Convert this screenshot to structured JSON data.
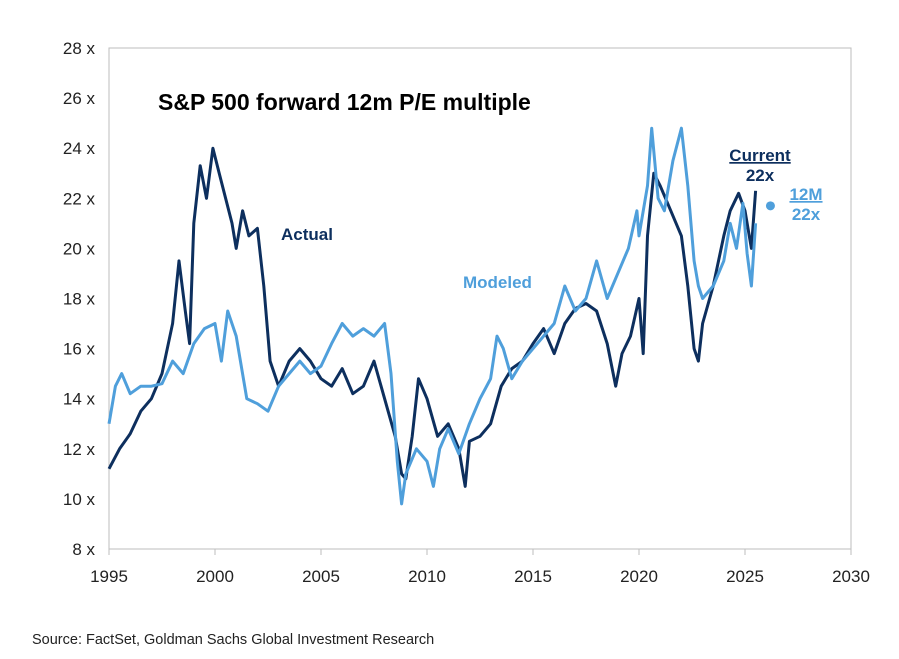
{
  "chart_data": {
    "type": "line",
    "title": "S&P 500 forward 12m P/E multiple",
    "xlabel": "",
    "ylabel": "",
    "xlim": [
      1995,
      2030
    ],
    "ylim": [
      8,
      28
    ],
    "x_ticks": [
      1995,
      2000,
      2005,
      2010,
      2015,
      2020,
      2025,
      2030
    ],
    "y_ticks": [
      8,
      10,
      12,
      14,
      16,
      18,
      20,
      22,
      24,
      26,
      28
    ],
    "y_tick_labels": [
      "8 x",
      "10 x",
      "12 x",
      "14 x",
      "16 x",
      "18 x",
      "20 x",
      "22 x",
      "24 x",
      "26 x",
      "28 x"
    ],
    "grid": false,
    "series": [
      {
        "name": "Actual",
        "color": "#0d2f5e",
        "points": [
          [
            1995.0,
            11.2
          ],
          [
            1995.5,
            12.0
          ],
          [
            1996.0,
            12.6
          ],
          [
            1996.5,
            13.5
          ],
          [
            1997.0,
            14.0
          ],
          [
            1997.5,
            15.0
          ],
          [
            1998.0,
            17.0
          ],
          [
            1998.3,
            19.5
          ],
          [
            1998.6,
            17.5
          ],
          [
            1998.8,
            16.2
          ],
          [
            1999.0,
            21.0
          ],
          [
            1999.3,
            23.3
          ],
          [
            1999.6,
            22.0
          ],
          [
            1999.9,
            24.0
          ],
          [
            2000.2,
            23.0
          ],
          [
            2000.5,
            22.0
          ],
          [
            2000.8,
            21.0
          ],
          [
            2001.0,
            20.0
          ],
          [
            2001.3,
            21.5
          ],
          [
            2001.6,
            20.5
          ],
          [
            2002.0,
            20.8
          ],
          [
            2002.3,
            18.5
          ],
          [
            2002.6,
            15.5
          ],
          [
            2003.0,
            14.5
          ],
          [
            2003.5,
            15.5
          ],
          [
            2004.0,
            16.0
          ],
          [
            2004.5,
            15.5
          ],
          [
            2005.0,
            14.8
          ],
          [
            2005.5,
            14.5
          ],
          [
            2006.0,
            15.2
          ],
          [
            2006.5,
            14.2
          ],
          [
            2007.0,
            14.5
          ],
          [
            2007.5,
            15.5
          ],
          [
            2008.0,
            14.0
          ],
          [
            2008.5,
            12.5
          ],
          [
            2008.8,
            11.0
          ],
          [
            2009.0,
            10.8
          ],
          [
            2009.3,
            12.5
          ],
          [
            2009.6,
            14.8
          ],
          [
            2010.0,
            14.0
          ],
          [
            2010.5,
            12.5
          ],
          [
            2011.0,
            13.0
          ],
          [
            2011.5,
            12.0
          ],
          [
            2011.8,
            10.5
          ],
          [
            2012.0,
            12.3
          ],
          [
            2012.5,
            12.5
          ],
          [
            2013.0,
            13.0
          ],
          [
            2013.5,
            14.5
          ],
          [
            2014.0,
            15.2
          ],
          [
            2014.5,
            15.5
          ],
          [
            2015.0,
            16.2
          ],
          [
            2015.5,
            16.8
          ],
          [
            2016.0,
            15.8
          ],
          [
            2016.5,
            17.0
          ],
          [
            2017.0,
            17.6
          ],
          [
            2017.5,
            17.8
          ],
          [
            2018.0,
            17.5
          ],
          [
            2018.5,
            16.2
          ],
          [
            2018.9,
            14.5
          ],
          [
            2019.2,
            15.8
          ],
          [
            2019.6,
            16.5
          ],
          [
            2020.0,
            18.0
          ],
          [
            2020.2,
            15.8
          ],
          [
            2020.4,
            20.5
          ],
          [
            2020.7,
            23.0
          ],
          [
            2021.0,
            22.5
          ],
          [
            2021.5,
            21.5
          ],
          [
            2022.0,
            20.5
          ],
          [
            2022.3,
            18.5
          ],
          [
            2022.6,
            16.0
          ],
          [
            2022.8,
            15.5
          ],
          [
            2023.0,
            17.0
          ],
          [
            2023.5,
            18.5
          ],
          [
            2024.0,
            20.5
          ],
          [
            2024.3,
            21.5
          ],
          [
            2024.7,
            22.2
          ],
          [
            2025.0,
            21.5
          ],
          [
            2025.3,
            20.0
          ],
          [
            2025.5,
            22.3
          ]
        ]
      },
      {
        "name": "Modeled",
        "color": "#4f9fdb",
        "points": [
          [
            1995.0,
            13.0
          ],
          [
            1995.3,
            14.5
          ],
          [
            1995.6,
            15.0
          ],
          [
            1996.0,
            14.2
          ],
          [
            1996.5,
            14.5
          ],
          [
            1997.0,
            14.5
          ],
          [
            1997.5,
            14.6
          ],
          [
            1998.0,
            15.5
          ],
          [
            1998.5,
            15.0
          ],
          [
            1999.0,
            16.2
          ],
          [
            1999.5,
            16.8
          ],
          [
            2000.0,
            17.0
          ],
          [
            2000.3,
            15.5
          ],
          [
            2000.6,
            17.5
          ],
          [
            2001.0,
            16.5
          ],
          [
            2001.5,
            14.0
          ],
          [
            2002.0,
            13.8
          ],
          [
            2002.5,
            13.5
          ],
          [
            2003.0,
            14.5
          ],
          [
            2003.5,
            15.0
          ],
          [
            2004.0,
            15.5
          ],
          [
            2004.5,
            15.0
          ],
          [
            2005.0,
            15.3
          ],
          [
            2005.5,
            16.2
          ],
          [
            2006.0,
            17.0
          ],
          [
            2006.5,
            16.5
          ],
          [
            2007.0,
            16.8
          ],
          [
            2007.5,
            16.5
          ],
          [
            2008.0,
            17.0
          ],
          [
            2008.3,
            15.0
          ],
          [
            2008.6,
            11.5
          ],
          [
            2008.8,
            9.8
          ],
          [
            2009.0,
            11.0
          ],
          [
            2009.5,
            12.0
          ],
          [
            2010.0,
            11.5
          ],
          [
            2010.3,
            10.5
          ],
          [
            2010.6,
            12.0
          ],
          [
            2011.0,
            12.8
          ],
          [
            2011.5,
            11.8
          ],
          [
            2012.0,
            13.0
          ],
          [
            2012.5,
            14.0
          ],
          [
            2013.0,
            14.8
          ],
          [
            2013.3,
            16.5
          ],
          [
            2013.6,
            16.0
          ],
          [
            2014.0,
            14.8
          ],
          [
            2014.5,
            15.5
          ],
          [
            2015.0,
            16.0
          ],
          [
            2015.5,
            16.5
          ],
          [
            2016.0,
            17.0
          ],
          [
            2016.5,
            18.5
          ],
          [
            2017.0,
            17.5
          ],
          [
            2017.5,
            18.0
          ],
          [
            2018.0,
            19.5
          ],
          [
            2018.5,
            18.0
          ],
          [
            2019.0,
            19.0
          ],
          [
            2019.5,
            20.0
          ],
          [
            2019.9,
            21.5
          ],
          [
            2020.0,
            20.5
          ],
          [
            2020.4,
            22.5
          ],
          [
            2020.6,
            24.8
          ],
          [
            2020.9,
            22.0
          ],
          [
            2021.2,
            21.5
          ],
          [
            2021.6,
            23.5
          ],
          [
            2022.0,
            24.8
          ],
          [
            2022.3,
            22.5
          ],
          [
            2022.6,
            19.5
          ],
          [
            2022.8,
            18.5
          ],
          [
            2023.0,
            18.0
          ],
          [
            2023.5,
            18.5
          ],
          [
            2024.0,
            19.5
          ],
          [
            2024.3,
            21.0
          ],
          [
            2024.6,
            20.0
          ],
          [
            2024.9,
            21.8
          ],
          [
            2025.1,
            19.8
          ],
          [
            2025.3,
            18.5
          ],
          [
            2025.5,
            21.0
          ]
        ]
      }
    ],
    "annotations": {
      "actual_label": "Actual",
      "modeled_label": "Modeled",
      "current_label": "Current",
      "current_value": "22x",
      "twelve_m_label": "12M",
      "twelve_m_value": "22x",
      "twelve_m_point": [
        2026.2,
        21.7
      ]
    }
  },
  "source": "Source: FactSet, Goldman Sachs Global Investment Research"
}
